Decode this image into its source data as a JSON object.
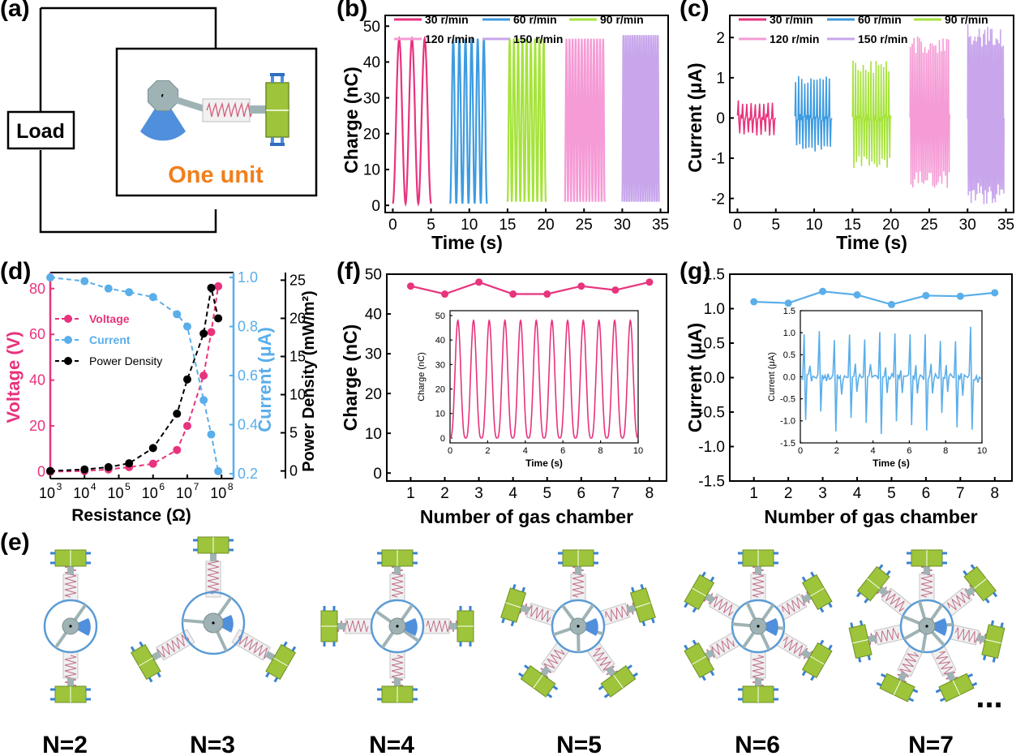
{
  "panel_labels": {
    "a": "(a)",
    "b": "(b)",
    "c": "(c)",
    "d": "(d)",
    "e": "(e)",
    "f": "(f)",
    "g": "(g)"
  },
  "panel_a": {
    "load": "Load",
    "unit": "One unit"
  },
  "colors": {
    "r30": "#e8337d",
    "r60": "#3d9be0",
    "r90": "#a6e33c",
    "r120": "#f59bd6",
    "r150": "#c9a6ec",
    "voltage": "#e8337d",
    "current": "#5aaeea",
    "power": "#000000",
    "orange": "#f07f1c",
    "chamber": "#9dc43a",
    "spring": "#c9c9c9",
    "hub": "#9fb3b5",
    "ring": "#5b9bd5"
  },
  "panel_e": {
    "labels": [
      "N=2",
      "N=3",
      "N=4",
      "N=5",
      "N=6",
      "N=7"
    ],
    "counts": [
      2,
      3,
      4,
      5,
      6,
      7
    ],
    "ellipsis": "..."
  },
  "chart_data": [
    {
      "id": "b",
      "type": "line",
      "xlabel": "Time (s)",
      "ylabel": "Charge (nC)",
      "xlim": [
        -1,
        36
      ],
      "ylim": [
        -2,
        53
      ],
      "xticks": [
        0,
        5,
        10,
        15,
        20,
        25,
        30,
        35
      ],
      "yticks": [
        0,
        10,
        20,
        30,
        40,
        50
      ],
      "legend": [
        "30 r/min",
        "60 r/min",
        "90 r/min",
        "120 r/min",
        "150 r/min"
      ],
      "series": [
        {
          "name": "30 r/min",
          "x_range": [
            0,
            5
          ],
          "cycles": 3,
          "min": 0.5,
          "max": 46.5
        },
        {
          "name": "60 r/min",
          "x_range": [
            7.5,
            12.3
          ],
          "cycles": 6,
          "min": 0.5,
          "max": 46.5
        },
        {
          "name": "90 r/min",
          "x_range": [
            15,
            20
          ],
          "cycles": 9,
          "min": 1,
          "max": 46.5
        },
        {
          "name": "120 r/min",
          "x_range": [
            22.5,
            27.7
          ],
          "cycles": 13,
          "min": 1,
          "max": 46.5
        },
        {
          "name": "150 r/min",
          "x_range": [
            30,
            34.8
          ],
          "cycles": 16,
          "min": 1,
          "max": 47.5
        }
      ]
    },
    {
      "id": "c",
      "type": "line",
      "xlabel": "Time (s)",
      "ylabel": "Current (μA)",
      "xlim": [
        -1,
        36
      ],
      "ylim": [
        -2.35,
        2.55
      ],
      "xticks": [
        0,
        5,
        10,
        15,
        20,
        25,
        30,
        35
      ],
      "yticks": [
        -2,
        -1,
        0,
        1,
        2
      ],
      "legend": [
        "30 r/min",
        "60 r/min",
        "90 r/min",
        "120 r/min",
        "150 r/min"
      ],
      "series": [
        {
          "name": "30 r/min",
          "x_range": [
            0,
            5
          ],
          "cycles": 9,
          "pos": 0.45,
          "neg": -0.45
        },
        {
          "name": "60 r/min",
          "x_range": [
            7.5,
            12.3
          ],
          "cycles": 12,
          "pos": 1.05,
          "neg": -0.85
        },
        {
          "name": "90 r/min",
          "x_range": [
            15,
            20
          ],
          "cycles": 15,
          "pos": 1.45,
          "neg": -1.25
        },
        {
          "name": "120 r/min",
          "x_range": [
            22.5,
            27.7
          ],
          "cycles": 22,
          "pos": 2.05,
          "neg": -1.75
        },
        {
          "name": "150 r/min",
          "x_range": [
            30,
            34.8
          ],
          "cycles": 26,
          "pos": 2.35,
          "neg": -2.15
        }
      ]
    },
    {
      "id": "d",
      "type": "scatter",
      "xlabel": "Resistance (Ω)",
      "ylabel_left": "Voltage (V)",
      "ylabel_right1": "Current (μA)",
      "ylabel_right2": "Power Density (mW/m²)",
      "x_log": true,
      "x": [
        1000,
        10000,
        50000,
        200000,
        1000000,
        5000000,
        10000000,
        30000000,
        50000000,
        80000000
      ],
      "xticks": [
        {
          "base": "10",
          "exp": "3"
        },
        {
          "base": "10",
          "exp": "4"
        },
        {
          "base": "10",
          "exp": "5"
        },
        {
          "base": "10",
          "exp": "6"
        },
        {
          "base": "10",
          "exp": "7"
        },
        {
          "base": "10",
          "exp": "8"
        }
      ],
      "voltage_lim": [
        -3,
        87
      ],
      "voltage_ticks": [
        0,
        20,
        40,
        60,
        80
      ],
      "current_lim": [
        0.18,
        1.02
      ],
      "current_ticks": [
        0.2,
        0.4,
        0.6,
        0.8,
        1.0
      ],
      "power_lim": [
        -1,
        26
      ],
      "power_ticks": [
        0,
        5,
        10,
        15,
        20,
        25
      ],
      "legend": [
        "Voltage",
        "Current",
        "Power Density"
      ],
      "voltage": [
        0,
        0.3,
        1,
        2,
        3.5,
        9.5,
        20,
        42,
        61,
        81
      ],
      "current": [
        1.0,
        0.985,
        0.955,
        0.94,
        0.92,
        0.85,
        0.8,
        0.5,
        0.36,
        0.21
      ],
      "power_density": [
        0,
        0.2,
        0.5,
        1,
        3,
        7.5,
        12,
        18,
        24,
        20
      ]
    },
    {
      "id": "f",
      "type": "line",
      "xlabel": "Number of gas chamber",
      "ylabel": "Charge (nC)",
      "x": [
        1,
        2,
        3,
        4,
        5,
        6,
        7,
        8
      ],
      "values": [
        47,
        45,
        48,
        45,
        45,
        47,
        46,
        48
      ],
      "xlim": [
        0.3,
        8.5
      ],
      "ylim": [
        -2,
        50
      ],
      "yticks": [
        0,
        10,
        20,
        30,
        40,
        50
      ],
      "xticks": [
        1,
        2,
        3,
        4,
        5,
        6,
        7,
        8
      ],
      "inset": {
        "xlabel": "Time (s)",
        "ylabel": "Charge (nC)",
        "xlim": [
          0,
          10
        ],
        "ylim": [
          -2,
          52
        ],
        "xticks": [
          0,
          2,
          4,
          6,
          8,
          10
        ],
        "yticks": [
          0,
          10,
          20,
          30,
          40,
          50
        ],
        "cycles": 12,
        "min": 0,
        "max": 48
      }
    },
    {
      "id": "g",
      "type": "line",
      "xlabel": "Number of gas chamber",
      "ylabel": "Current (μA)",
      "x": [
        1,
        2,
        3,
        4,
        5,
        6,
        7,
        8
      ],
      "values": [
        1.1,
        1.08,
        1.25,
        1.2,
        1.06,
        1.19,
        1.18,
        1.23
      ],
      "xlim": [
        0.3,
        8.5
      ],
      "ylim": [
        -1.5,
        1.5
      ],
      "xticks": [
        1,
        2,
        3,
        4,
        5,
        6,
        7,
        8
      ],
      "yticks": [
        -1.5,
        -1.0,
        -0.5,
        0.0,
        0.5,
        1.0,
        1.5
      ],
      "inset": {
        "xlabel": "Time (s)",
        "ylabel": "Current (μA)",
        "xlim": [
          0,
          10
        ],
        "ylim": [
          -1.5,
          1.5
        ],
        "xticks": [
          0,
          2,
          4,
          6,
          8,
          10
        ],
        "yticks": [
          -1.5,
          -1.0,
          -0.5,
          0.0,
          0.5,
          1.0,
          1.5
        ],
        "cycles": 12,
        "pos": 1.15,
        "neg": -1.3
      }
    }
  ]
}
